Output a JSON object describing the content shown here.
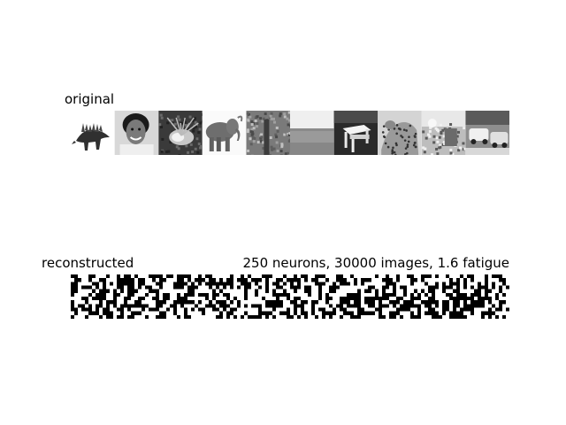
{
  "figure": {
    "original_title": "original",
    "reconstructed_title": "reconstructed",
    "info_title": "250 neurons, 30000 images, 1.6 fatigue"
  },
  "original_images": [
    {
      "subject": "stegosaurus"
    },
    {
      "subject": "smiling-child-portrait"
    },
    {
      "subject": "sea-anemone"
    },
    {
      "subject": "elephant"
    },
    {
      "subject": "tree-with-foliage"
    },
    {
      "subject": "seascape-horizon"
    },
    {
      "subject": "white-table"
    },
    {
      "subject": "leopard"
    },
    {
      "subject": "garden-scene"
    },
    {
      "subject": "parked-cars"
    }
  ],
  "reconstructed": {
    "kind": "binary-noise"
  }
}
